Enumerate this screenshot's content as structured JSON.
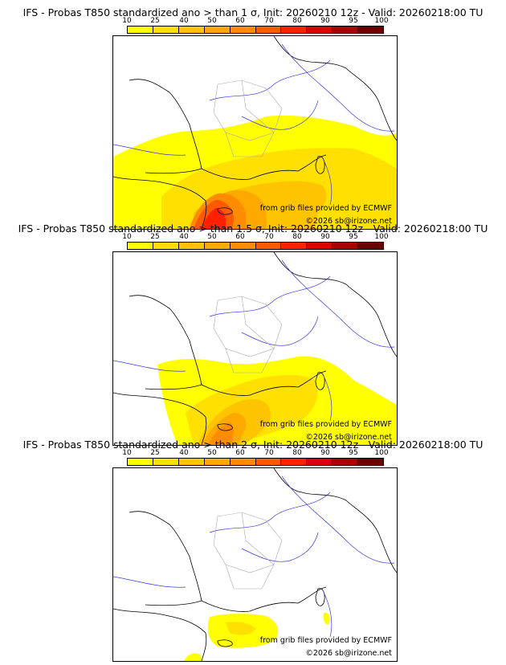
{
  "legend": {
    "ticks": [
      "10",
      "25",
      "40",
      "50",
      "60",
      "70",
      "80",
      "90",
      "95",
      "100"
    ],
    "colors": [
      "#ffff00",
      "#ffe000",
      "#ffc400",
      "#ffa800",
      "#ff8c00",
      "#ff5a00",
      "#ff2000",
      "#dd0000",
      "#aa0000",
      "#6a0000"
    ]
  },
  "panels": [
    {
      "title": "IFS - Probas T850  standardized ano > than 1 σ, Init: 20260210 12z - Valid: 20260218:00 TU",
      "credit": "from grib files provided by ECMWF",
      "copyright": "©2026 sb@irizone.net",
      "threshold_sigma": 1
    },
    {
      "title": "IFS - Probas T850  standardized ano > than 1.5 σ, Init: 20260210 12z - Valid: 20260218:00 TU",
      "credit": "from grib files provided by ECMWF",
      "copyright": "©2026 sb@irizone.net",
      "threshold_sigma": 1.5
    },
    {
      "title": "IFS - Probas T850  standardized ano > than 2 σ, Init: 20260210 12z - Valid: 20260218:00 TU",
      "credit": "from grib files provided by ECMWF",
      "copyright": "©2026 sb@irizone.net",
      "threshold_sigma": 2
    }
  ]
}
